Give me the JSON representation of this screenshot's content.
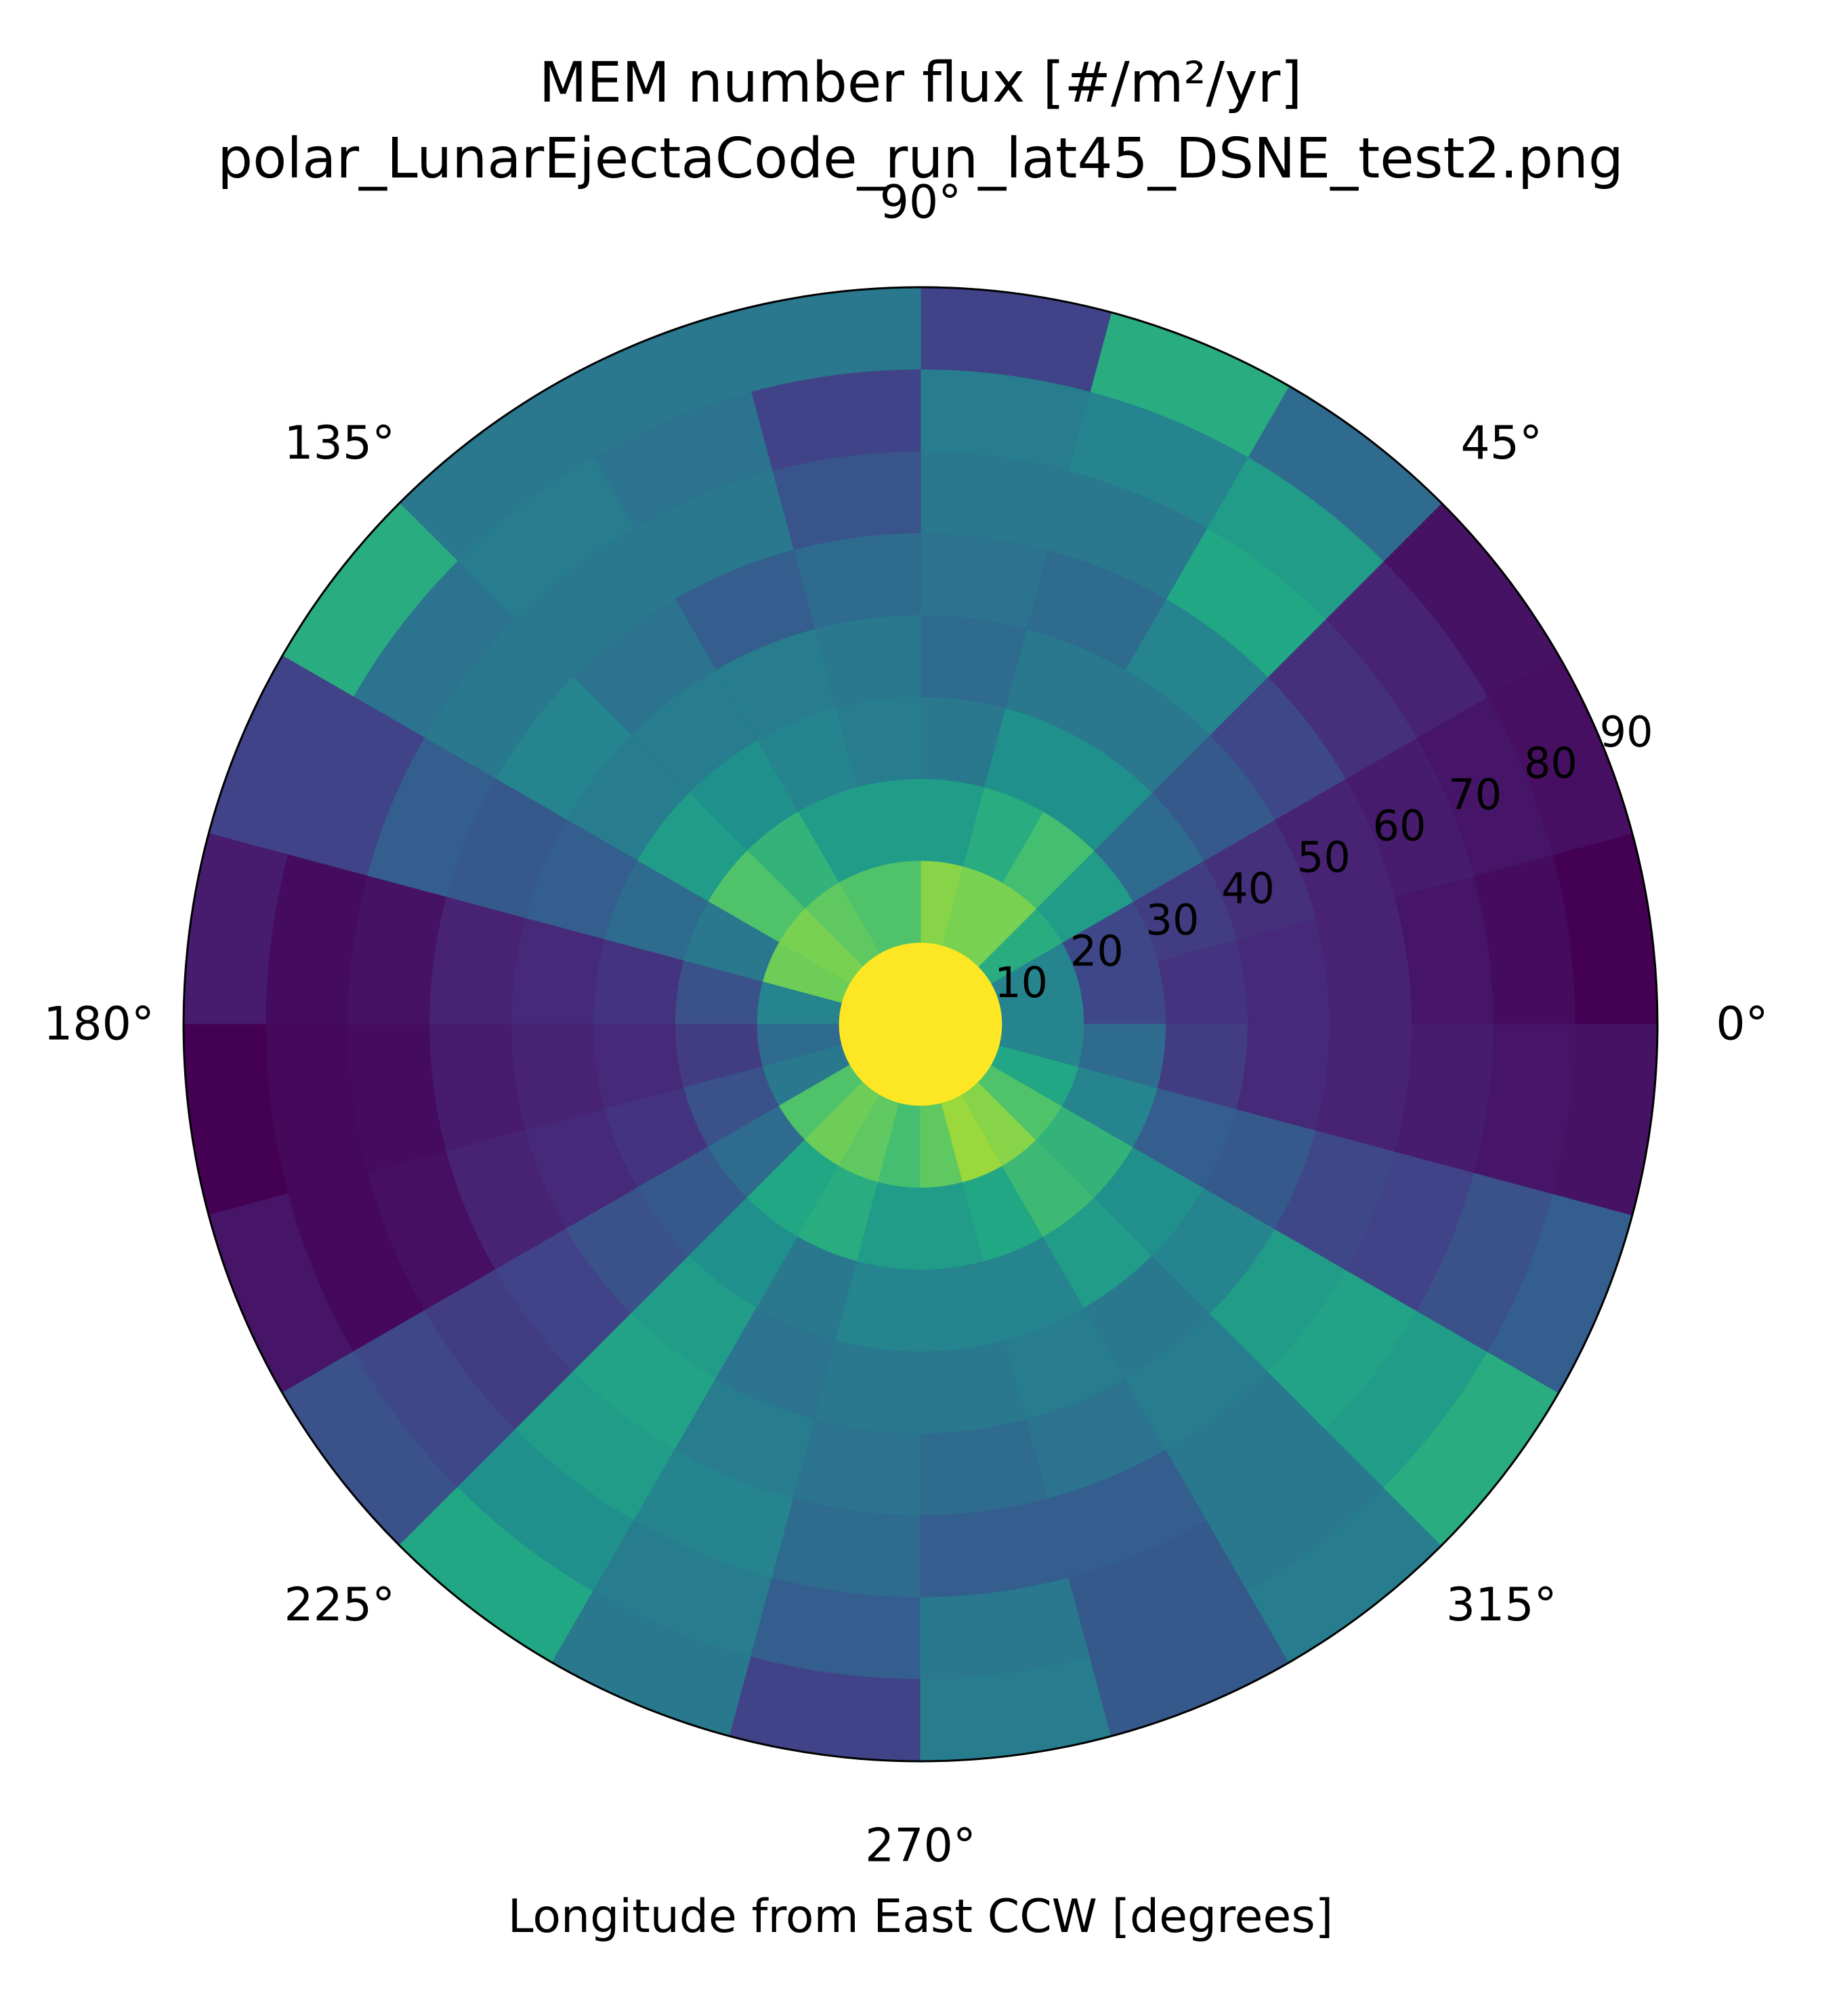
{
  "chart_data": {
    "type": "heatmap",
    "projection": "polar",
    "title": "MEM number flux [#/m²/yr]",
    "subtitle": "polar_LunarEjectaCode_run_lat45_DSNE_test2.png",
    "xlabel": "Longitude from East CCW [degrees]",
    "theta_tick_labels": [
      "0°",
      "45°",
      "90°",
      "135°",
      "180°",
      "225°",
      "270°",
      "315°"
    ],
    "r_tick_labels": [
      "10",
      "20",
      "30",
      "40",
      "50",
      "60",
      "70",
      "80",
      "90"
    ],
    "r_range": [
      0,
      90
    ],
    "r_bin_edges": [
      0,
      10,
      20,
      30,
      40,
      50,
      60,
      70,
      80,
      90
    ],
    "theta_bin_edges_deg": [
      0,
      15,
      30,
      45,
      60,
      75,
      90,
      105,
      120,
      135,
      150,
      165,
      180,
      195,
      210,
      225,
      240,
      255,
      270,
      285,
      300,
      315,
      330,
      345,
      360
    ],
    "colormap": "viridis",
    "value_scale": "relative, 0 (dark purple) to 1 (yellow)",
    "grid": false,
    "values": [
      [
        1.0,
        0.45,
        0.22,
        0.15,
        0.12,
        0.1,
        0.06,
        0.03,
        0.0
      ],
      [
        1.0,
        0.45,
        0.22,
        0.18,
        0.14,
        0.1,
        0.08,
        0.06,
        0.04
      ],
      [
        1.0,
        0.62,
        0.55,
        0.35,
        0.28,
        0.22,
        0.14,
        0.1,
        0.05
      ],
      [
        1.0,
        0.8,
        0.7,
        0.5,
        0.4,
        0.45,
        0.6,
        0.55,
        0.35
      ],
      [
        1.0,
        0.8,
        0.62,
        0.5,
        0.4,
        0.35,
        0.4,
        0.45,
        0.62
      ],
      [
        1.0,
        0.82,
        0.55,
        0.4,
        0.35,
        0.38,
        0.4,
        0.42,
        0.2
      ],
      [
        1.0,
        0.72,
        0.55,
        0.42,
        0.4,
        0.35,
        0.26,
        0.2,
        0.4
      ],
      [
        1.0,
        0.72,
        0.55,
        0.45,
        0.42,
        0.3,
        0.4,
        0.38,
        0.4
      ],
      [
        1.0,
        0.75,
        0.65,
        0.5,
        0.42,
        0.38,
        0.4,
        0.42,
        0.4
      ],
      [
        1.0,
        0.8,
        0.72,
        0.55,
        0.42,
        0.45,
        0.4,
        0.38,
        0.62
      ],
      [
        1.0,
        0.78,
        0.4,
        0.35,
        0.3,
        0.28,
        0.3,
        0.2,
        0.2
      ],
      [
        1.0,
        0.45,
        0.25,
        0.15,
        0.12,
        0.1,
        0.05,
        0.03,
        0.08
      ],
      [
        1.0,
        0.35,
        0.18,
        0.12,
        0.1,
        0.08,
        0.03,
        0.02,
        0.0
      ],
      [
        1.0,
        0.4,
        0.25,
        0.15,
        0.12,
        0.1,
        0.04,
        0.02,
        0.06
      ],
      [
        1.0,
        0.72,
        0.35,
        0.28,
        0.25,
        0.2,
        0.18,
        0.22,
        0.25
      ],
      [
        1.0,
        0.78,
        0.6,
        0.5,
        0.55,
        0.58,
        0.55,
        0.5,
        0.6
      ],
      [
        1.0,
        0.75,
        0.62,
        0.4,
        0.38,
        0.42,
        0.45,
        0.42,
        0.4
      ],
      [
        1.0,
        0.7,
        0.55,
        0.45,
        0.4,
        0.38,
        0.35,
        0.3,
        0.2
      ],
      [
        1.0,
        0.75,
        0.55,
        0.45,
        0.4,
        0.35,
        0.3,
        0.4,
        0.42
      ],
      [
        1.0,
        0.85,
        0.6,
        0.45,
        0.42,
        0.38,
        0.3,
        0.28,
        0.28
      ],
      [
        1.0,
        0.82,
        0.68,
        0.55,
        0.4,
        0.42,
        0.4,
        0.4,
        0.42
      ],
      [
        1.0,
        0.72,
        0.65,
        0.5,
        0.45,
        0.55,
        0.58,
        0.55,
        0.62
      ],
      [
        1.0,
        0.6,
        0.45,
        0.3,
        0.28,
        0.22,
        0.2,
        0.25,
        0.3
      ],
      [
        1.0,
        0.45,
        0.35,
        0.18,
        0.12,
        0.1,
        0.08,
        0.06,
        0.05
      ]
    ]
  }
}
